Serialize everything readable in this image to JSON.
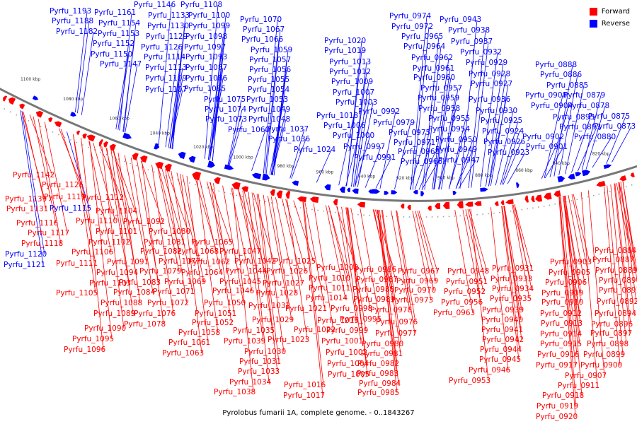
{
  "caption": "Pyrolobus fumarii 1A, complete genome. - 0..1843267",
  "colors": {
    "forward": "#ff0000",
    "reverse": "#0000ff",
    "backbone": "#777777"
  },
  "legend": {
    "forward_label": "Forward",
    "reverse_label": "Reverse"
  },
  "ticks": [
    "1100 kbp",
    "1080 kbp",
    "1060 kbp",
    "1040 kbp",
    "1020 kbp",
    "1000 kbp",
    "980 kbp",
    "960 kbp",
    "940 kbp",
    "920 kbp",
    "900 kbp",
    "880 kbp",
    "860 kbp",
    "840 kbp",
    "820 kbp"
  ],
  "reverse_labels": [
    {
      "t": "Pyrfu_1193"
    },
    {
      "t": "Pyrfu_1188"
    },
    {
      "t": "Pyrfu_1182"
    },
    {
      "t": "Pyrfu_1161"
    },
    {
      "t": "Pyrfu_1154"
    },
    {
      "t": "Pyrfu_1153"
    },
    {
      "t": "Pyrfu_1152"
    },
    {
      "t": "Pyrfu_1150"
    },
    {
      "t": "Pyrfu_1147"
    },
    {
      "t": "Pyrfu_1146"
    },
    {
      "t": "Pyrfu_1133"
    },
    {
      "t": "Pyrfu_1130"
    },
    {
      "t": "Pyrfu_1129"
    },
    {
      "t": "Pyrfu_1126"
    },
    {
      "t": "Pyrfu_1114"
    },
    {
      "t": "Pyrfu_1113"
    },
    {
      "t": "Pyrfu_1109"
    },
    {
      "t": "Pyrfu_1107"
    },
    {
      "t": "Pyrfu_1108"
    },
    {
      "t": "Pyrfu_1100"
    },
    {
      "t": "Pyrfu_1099"
    },
    {
      "t": "Pyrfu_1098"
    },
    {
      "t": "Pyrfu_1097"
    },
    {
      "t": "Pyrfu_1093"
    },
    {
      "t": "Pyrfu_1087"
    },
    {
      "t": "Pyrfu_1086"
    },
    {
      "t": "Pyrfu_1085"
    },
    {
      "t": "Pyrfu_1075"
    },
    {
      "t": "Pyrfu_1074"
    },
    {
      "t": "Pyrfu_1073"
    },
    {
      "t": "Pyrfu_1070"
    },
    {
      "t": "Pyrfu_1067"
    },
    {
      "t": "Pyrfu_1066"
    },
    {
      "t": "Pyrfu_1059"
    },
    {
      "t": "Pyrfu_1057"
    },
    {
      "t": "Pyrfu_1056"
    },
    {
      "t": "Pyrfu_1055"
    },
    {
      "t": "Pyrfu_1054"
    },
    {
      "t": "Pyrfu_1053"
    },
    {
      "t": "Pyrfu_1049"
    },
    {
      "t": "Pyrfu_1048"
    },
    {
      "t": "Pyrfu_1060"
    },
    {
      "t": "Pyrfu_1037"
    },
    {
      "t": "Pyrfu_1036"
    },
    {
      "t": "Pyrfu_1024"
    },
    {
      "t": "Pyrfu_1020"
    },
    {
      "t": "Pyrfu_1019"
    },
    {
      "t": "Pyrfu_1013"
    },
    {
      "t": "Pyrfu_1012"
    },
    {
      "t": "Pyrfu_1009"
    },
    {
      "t": "Pyrfu_1007"
    },
    {
      "t": "Pyrfu_1003"
    },
    {
      "t": "Pyrfu_1018"
    },
    {
      "t": "Pyrfu_1006"
    },
    {
      "t": "Pyrfu_1000"
    },
    {
      "t": "Pyrfu_0997"
    },
    {
      "t": "Pyrfu_0992"
    },
    {
      "t": "Pyrfu_0991"
    },
    {
      "t": "Pyrfu_0974"
    },
    {
      "t": "Pyrfu_0972"
    },
    {
      "t": "Pyrfu_0965"
    },
    {
      "t": "Pyrfu_0964"
    },
    {
      "t": "Pyrfu_0962"
    },
    {
      "t": "Pyrfu_0961"
    },
    {
      "t": "Pyrfu_0960"
    },
    {
      "t": "Pyrfu_0957"
    },
    {
      "t": "Pyrfu_0959"
    },
    {
      "t": "Pyrfu_0958"
    },
    {
      "t": "Pyrfu_0955"
    },
    {
      "t": "Pyrfu_0954"
    },
    {
      "t": "Pyrfu_0950"
    },
    {
      "t": "Pyrfu_0949"
    },
    {
      "t": "Pyrfu_0947"
    },
    {
      "t": "Pyrfu_0979"
    },
    {
      "t": "Pyrfu_0975"
    },
    {
      "t": "Pyrfu_0971"
    },
    {
      "t": "Pyrfu_0968"
    },
    {
      "t": "Pyrfu_0966"
    },
    {
      "t": "Pyrfu_0943"
    },
    {
      "t": "Pyrfu_0938"
    },
    {
      "t": "Pyrfu_0937"
    },
    {
      "t": "Pyrfu_0932"
    },
    {
      "t": "Pyrfu_0929"
    },
    {
      "t": "Pyrfu_0928"
    },
    {
      "t": "Pyrfu_0927"
    },
    {
      "t": "Pyrfu_0936"
    },
    {
      "t": "Pyrfu_0930"
    },
    {
      "t": "Pyrfu_0925"
    },
    {
      "t": "Pyrfu_0924"
    },
    {
      "t": "Pyrfu_0926"
    },
    {
      "t": "Pyrfu_0923"
    },
    {
      "t": "Pyrfu_0908"
    },
    {
      "t": "Pyrfu_0904"
    },
    {
      "t": "Pyrfu_0902"
    },
    {
      "t": "Pyrfu_0901"
    },
    {
      "t": "Pyrfu_0895"
    },
    {
      "t": "Pyrfu_0893"
    },
    {
      "t": "Pyrfu_0888"
    },
    {
      "t": "Pyrfu_0886"
    },
    {
      "t": "Pyrfu_0885"
    },
    {
      "t": "Pyrfu_0879"
    },
    {
      "t": "Pyrfu_0878"
    },
    {
      "t": "Pyrfu_0875"
    },
    {
      "t": "Pyrfu_0873"
    },
    {
      "t": "Pyrfu_0880"
    },
    {
      "t": "Pyrfu_1115"
    },
    {
      "t": "Pyrfu_1121"
    },
    {
      "t": "Pyrfu_1120"
    }
  ],
  "forward_labels": [
    {
      "t": "Pyrfu_1142"
    },
    {
      "t": "Pyrfu_1125"
    },
    {
      "t": "Pyrfu_1139"
    },
    {
      "t": "Pyrfu_1119"
    },
    {
      "t": "Pyrfu_1131"
    },
    {
      "t": "Pyrfu_1112"
    },
    {
      "t": "Pyrfu_1104"
    },
    {
      "t": "Pyrfu_1116"
    },
    {
      "t": "Pyrfu_1110"
    },
    {
      "t": "Pyrfu_1117"
    },
    {
      "t": "Pyrfu_1101"
    },
    {
      "t": "Pyrfu_1118"
    },
    {
      "t": "Pyrfu_1102"
    },
    {
      "t": "Pyrfu_1092"
    },
    {
      "t": "Pyrfu_1106"
    },
    {
      "t": "Pyrfu_1080"
    },
    {
      "t": "Pyrfu_1081"
    },
    {
      "t": "Pyrfu_1082"
    },
    {
      "t": "Pyrfu_1065"
    },
    {
      "t": "Pyrfu_1068"
    },
    {
      "t": "Pyrfu_1047"
    },
    {
      "t": "Pyrfu_1111"
    },
    {
      "t": "Pyrfu_1091"
    },
    {
      "t": "Pyrfu_1094"
    },
    {
      "t": "Pyrfu_1077"
    },
    {
      "t": "Pyrfu_1079"
    },
    {
      "t": "Pyrfu_1062"
    },
    {
      "t": "Pyrfu_1064"
    },
    {
      "t": "Pyrfu_1042"
    },
    {
      "t": "Pyrfu_1044"
    },
    {
      "t": "Pyrfu_1025"
    },
    {
      "t": "Pyrfu_1026"
    },
    {
      "t": "Pyrfu_1103"
    },
    {
      "t": "Pyrfu_1083"
    },
    {
      "t": "Pyrfu_1069"
    },
    {
      "t": "Pyrfu_1045"
    },
    {
      "t": "Pyrfu_1027"
    },
    {
      "t": "Pyrfu_1105"
    },
    {
      "t": "Pyrfu_1084"
    },
    {
      "t": "Pyrfu_1071"
    },
    {
      "t": "Pyrfu_1046"
    },
    {
      "t": "Pyrfu_1028"
    },
    {
      "t": "Pyrfu_1088"
    },
    {
      "t": "Pyrfu_1072"
    },
    {
      "t": "Pyrfu_1050"
    },
    {
      "t": "Pyrfu_1032"
    },
    {
      "t": "Pyrfu_1021"
    },
    {
      "t": "Pyrfu_1089"
    },
    {
      "t": "Pyrfu_1076"
    },
    {
      "t": "Pyrfu_1051"
    },
    {
      "t": "Pyrfu_1029"
    },
    {
      "t": "Pyrfu_1015"
    },
    {
      "t": "Pyrfu_1090"
    },
    {
      "t": "Pyrfu_1078"
    },
    {
      "t": "Pyrfu_1052"
    },
    {
      "t": "Pyrfu_1035"
    },
    {
      "t": "Pyrfu_1022"
    },
    {
      "t": "Pyrfu_1058"
    },
    {
      "t": "Pyrfu_1039"
    },
    {
      "t": "Pyrfu_1023"
    },
    {
      "t": "Pyrfu_1095"
    },
    {
      "t": "Pyrfu_1061"
    },
    {
      "t": "Pyrfu_1030"
    },
    {
      "t": "Pyrfu_1096"
    },
    {
      "t": "Pyrfu_1063"
    },
    {
      "t": "Pyrfu_1031"
    },
    {
      "t": "Pyrfu_1033"
    },
    {
      "t": "Pyrfu_1034"
    },
    {
      "t": "Pyrfu_1038"
    },
    {
      "t": "Pyrfu_1016"
    },
    {
      "t": "Pyrfu_1017"
    },
    {
      "t": "Pyrfu_1008"
    },
    {
      "t": "Pyrfu_1010"
    },
    {
      "t": "Pyrfu_1011"
    },
    {
      "t": "Pyrfu_1014"
    },
    {
      "t": "Pyrfu_0998"
    },
    {
      "t": "Pyrfu_0995"
    },
    {
      "t": "Pyrfu_0999"
    },
    {
      "t": "Pyrfu_1001"
    },
    {
      "t": "Pyrfu_1002"
    },
    {
      "t": "Pyrfu_1004"
    },
    {
      "t": "Pyrfu_1005"
    },
    {
      "t": "Pyrfu_0986"
    },
    {
      "t": "Pyrfu_0987"
    },
    {
      "t": "Pyrfu_0988"
    },
    {
      "t": "Pyrfu_0989"
    },
    {
      "t": "Pyrfu_0978"
    },
    {
      "t": "Pyrfu_0976"
    },
    {
      "t": "Pyrfu_0977"
    },
    {
      "t": "Pyrfu_0980"
    },
    {
      "t": "Pyrfu_0981"
    },
    {
      "t": "Pyrfu_0982"
    },
    {
      "t": "Pyrfu_0983"
    },
    {
      "t": "Pyrfu_0984"
    },
    {
      "t": "Pyrfu_0985"
    },
    {
      "t": "Pyrfu_0967"
    },
    {
      "t": "Pyrfu_0969"
    },
    {
      "t": "Pyrfu_0970"
    },
    {
      "t": "Pyrfu_0973"
    },
    {
      "t": "Pyrfu_0963"
    },
    {
      "t": "Pyrfu_0948"
    },
    {
      "t": "Pyrfu_0951"
    },
    {
      "t": "Pyrfu_0952"
    },
    {
      "t": "Pyrfu_0956"
    },
    {
      "t": "Pyrfu_0953"
    },
    {
      "t": "Pyrfu_0931"
    },
    {
      "t": "Pyrfu_0933"
    },
    {
      "t": "Pyrfu_0934"
    },
    {
      "t": "Pyrfu_0935"
    },
    {
      "t": "Pyrfu_0939"
    },
    {
      "t": "Pyrfu_0940"
    },
    {
      "t": "Pyrfu_0941"
    },
    {
      "t": "Pyrfu_0942"
    },
    {
      "t": "Pyrfu_0944"
    },
    {
      "t": "Pyrfu_0945"
    },
    {
      "t": "Pyrfu_0946"
    },
    {
      "t": "Pyrfu_0903"
    },
    {
      "t": "Pyrfu_0905"
    },
    {
      "t": "Pyrfu_0906"
    },
    {
      "t": "Pyrfu_0909"
    },
    {
      "t": "Pyrfu_0910"
    },
    {
      "t": "Pyrfu_0912"
    },
    {
      "t": "Pyrfu_0913"
    },
    {
      "t": "Pyrfu_0914"
    },
    {
      "t": "Pyrfu_0915"
    },
    {
      "t": "Pyrfu_0916"
    },
    {
      "t": "Pyrfu_0917"
    },
    {
      "t": "Pyrfu_0918"
    },
    {
      "t": "Pyrfu_0919"
    },
    {
      "t": "Pyrfu_0920"
    },
    {
      "t": "Pyrfu_0911"
    },
    {
      "t": "Pyrfu_0907"
    },
    {
      "t": "Pyrfu_0900"
    },
    {
      "t": "Pyrfu_0899"
    },
    {
      "t": "Pyrfu_0898"
    },
    {
      "t": "Pyrfu_0897"
    },
    {
      "t": "Pyrfu_0896"
    },
    {
      "t": "Pyrfu_0894"
    },
    {
      "t": "Pyrfu_0892"
    },
    {
      "t": "Pyrfu_0891"
    },
    {
      "t": "Pyrfu_0890"
    },
    {
      "t": "Pyrfu_0889"
    },
    {
      "t": "Pyrfu_0887"
    },
    {
      "t": "Pyrfu_0884"
    }
  ]
}
